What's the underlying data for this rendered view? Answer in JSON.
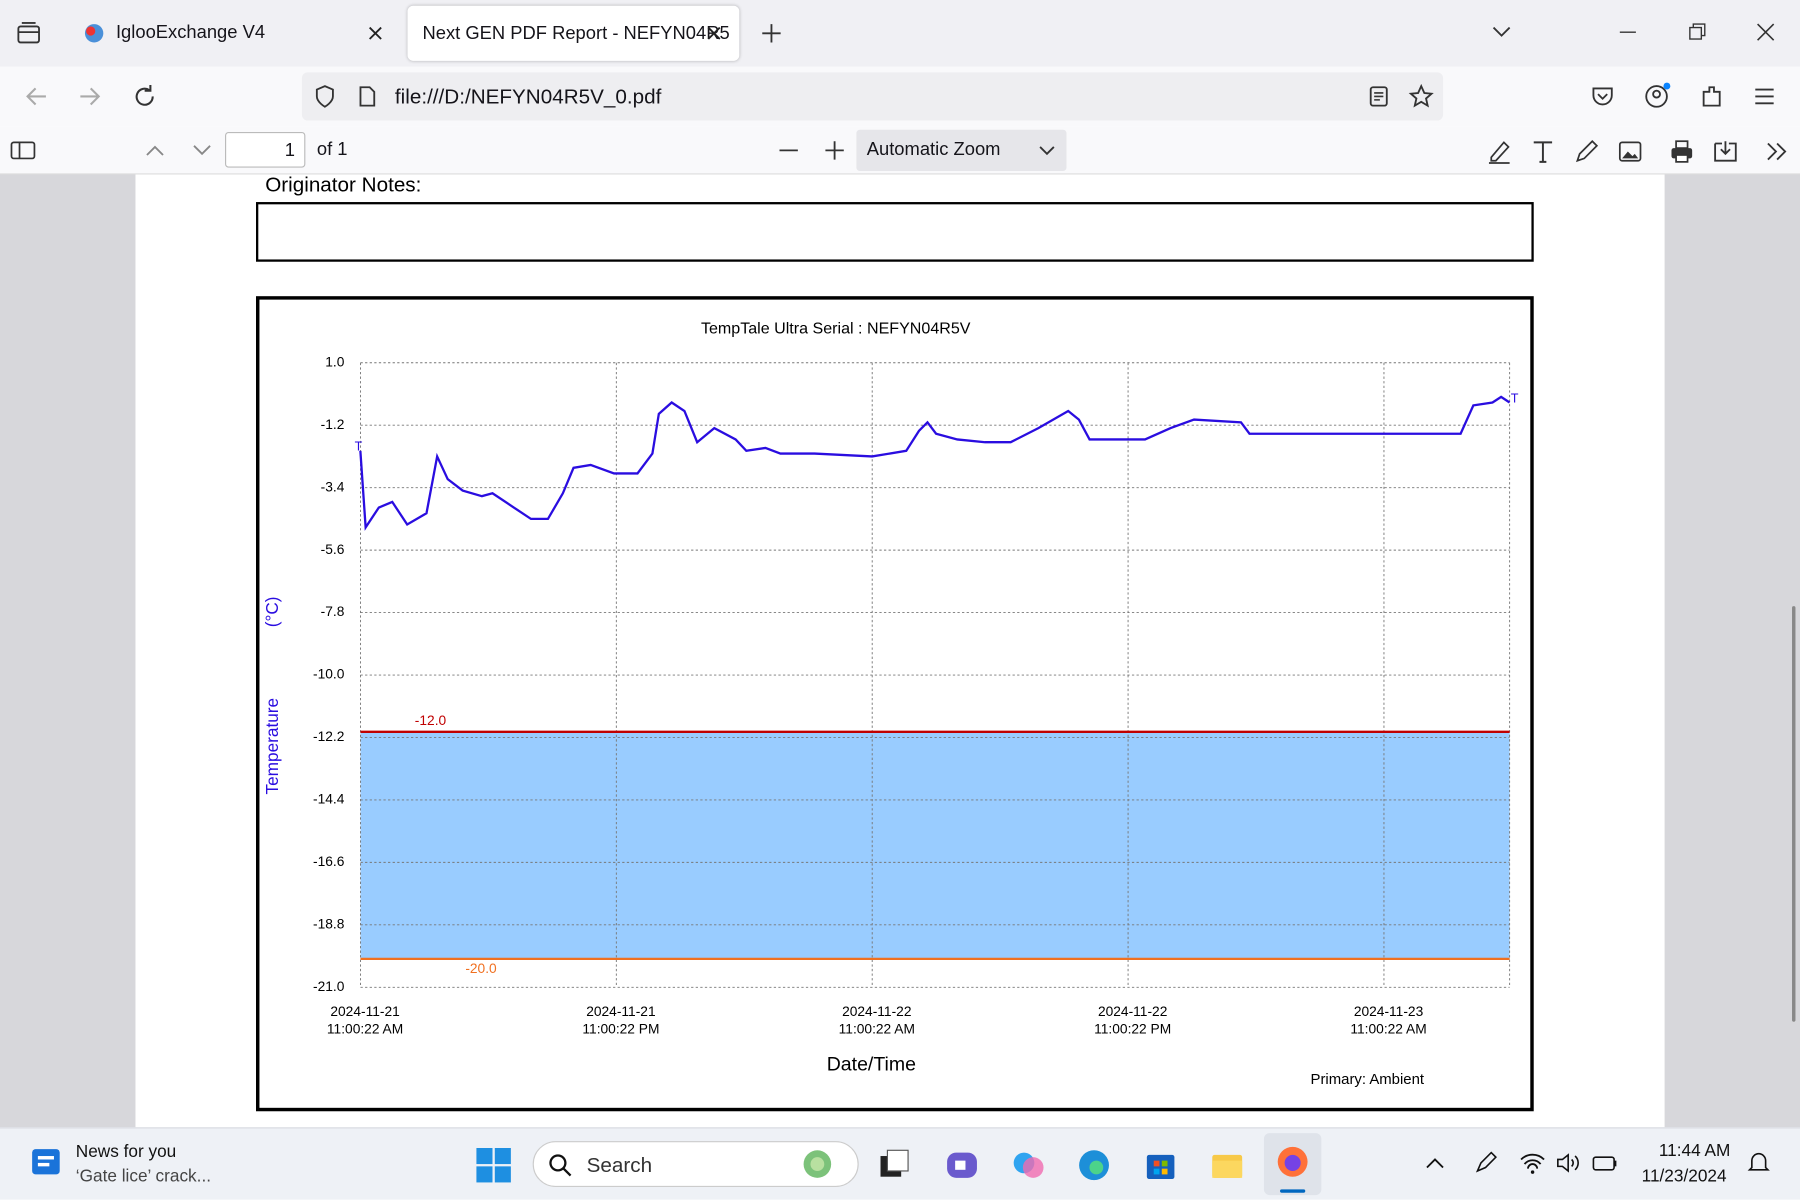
{
  "browser": {
    "tabs": [
      "IglooExchange V4",
      "Next GEN PDF Report - NEFYN04R5"
    ],
    "url": "file:///D:/NEFYN04R5V_0.pdf"
  },
  "pdf_toolbar": {
    "page": "1",
    "page_count": "of 1",
    "zoom": "Automatic Zoom"
  },
  "document": {
    "originator_label": "Originator Notes:"
  },
  "chart_data": {
    "type": "line",
    "title": "TempTale Ultra  Serial : NEFYN04R5V",
    "y_label": "Temperature",
    "y_unit": "(°C)",
    "x_label": "Date/Time",
    "x": [
      "2024-11-21T11:00",
      "2024-11-21T11:15",
      "2024-11-21T11:52",
      "2024-11-21T12:30",
      "2024-11-21T13:12",
      "2024-11-21T14:06",
      "2024-11-21T14:36",
      "2024-11-21T15:06",
      "2024-11-21T15:48",
      "2024-11-21T16:42",
      "2024-11-21T17:12",
      "2024-11-21T18:12",
      "2024-11-21T19:00",
      "2024-11-21T19:48",
      "2024-11-21T20:30",
      "2024-11-21T21:00",
      "2024-11-21T21:48",
      "2024-11-21T22:54",
      "2024-11-22T00:00",
      "2024-11-22T00:42",
      "2024-11-22T01:00",
      "2024-11-22T01:36",
      "2024-11-22T02:12",
      "2024-11-22T02:48",
      "2024-11-22T03:36",
      "2024-11-22T04:36",
      "2024-11-22T05:06",
      "2024-11-22T06:00",
      "2024-11-22T06:42",
      "2024-11-22T08:18",
      "2024-11-22T11:00",
      "2024-11-22T12:36",
      "2024-11-22T13:12",
      "2024-11-22T13:36",
      "2024-11-22T14:00",
      "2024-11-22T15:00",
      "2024-11-22T16:18",
      "2024-11-22T17:30",
      "2024-11-22T18:48",
      "2024-11-22T20:12",
      "2024-11-22T20:42",
      "2024-11-22T21:12",
      "2024-11-22T23:48",
      "2024-11-23T01:00",
      "2024-11-23T02:06",
      "2024-11-23T04:18",
      "2024-11-23T04:42",
      "2024-11-23T11:00",
      "2024-11-23T14:36",
      "2024-11-23T15:12",
      "2024-11-23T16:06",
      "2024-11-23T16:30",
      "2024-11-23T16:54"
    ],
    "series": [
      {
        "name": "Primary: Ambient",
        "color": "#2a0de0",
        "values": [
          -2.1,
          -4.8,
          -4.1,
          -3.9,
          -4.7,
          -4.3,
          -2.3,
          -3.1,
          -3.5,
          -3.7,
          -3.6,
          -4.1,
          -4.5,
          -4.5,
          -3.6,
          -2.7,
          -2.6,
          -2.9,
          -2.9,
          -2.2,
          -0.8,
          -0.4,
          -0.7,
          -1.8,
          -1.3,
          -1.7,
          -2.1,
          -2.0,
          -2.2,
          -2.2,
          -2.3,
          -2.1,
          -1.4,
          -1.1,
          -1.5,
          -1.7,
          -1.8,
          -1.8,
          -1.3,
          -0.7,
          -1.0,
          -1.7,
          -1.7,
          -1.3,
          -1.0,
          -1.1,
          -1.5,
          -1.5,
          -1.5,
          -0.5,
          -0.4,
          -0.2,
          -0.4
        ]
      }
    ],
    "start_marker": "T",
    "end_marker": "T",
    "thresholds": [
      {
        "value": -12,
        "label": "-12.0",
        "color": "#c00000"
      },
      {
        "value": -20,
        "label": "-20.0",
        "color": "#f07020"
      }
    ],
    "band_color": "#99ccff",
    "xlim": [
      "2024-11-21T11:00:22",
      "2024-11-23T16:54"
    ],
    "xticks": [
      {
        "value": "2024-11-21T11:00:22",
        "label": [
          "2024-11-21",
          "11:00:22 AM"
        ]
      },
      {
        "value": "2024-11-21T23:00:22",
        "label": [
          "2024-11-21",
          "11:00:22 PM"
        ]
      },
      {
        "value": "2024-11-22T11:00:22",
        "label": [
          "2024-11-22",
          "11:00:22 AM"
        ]
      },
      {
        "value": "2024-11-22T23:00:22",
        "label": [
          "2024-11-22",
          "11:00:22 PM"
        ]
      },
      {
        "value": "2024-11-23T11:00:22",
        "label": [
          "2024-11-23",
          "11:00:22 AM"
        ]
      }
    ],
    "ylim": [
      -21,
      1
    ],
    "yticks": [
      {
        "value": 1,
        "label": "1.0"
      },
      -1.2,
      -3.4,
      -5.6,
      -7.8,
      {
        "value": -10,
        "label": "-10.0"
      },
      -12.2,
      -14.4,
      -16.6,
      -18.8,
      {
        "value": -21,
        "label": "-21.0"
      }
    ],
    "grid": true
  },
  "taskbar": {
    "news_title": "News for you",
    "news_subtitle": "‘Gate lice’ crack...",
    "search": "Search",
    "time": "11:44 AM",
    "date": "11/23/2024"
  }
}
